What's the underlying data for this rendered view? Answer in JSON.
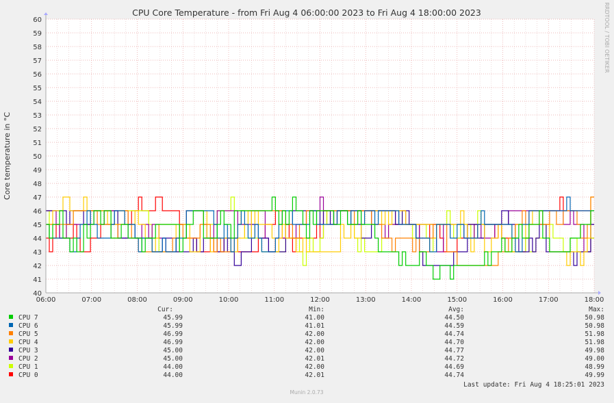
{
  "chart_data": {
    "type": "line",
    "title": "CPU Core Temperature - from Fri Aug  4 06:00:00 2023 to Fri Aug  4 18:00:00 2023",
    "ylabel": "Core temperature in °C",
    "xlabel": "",
    "ylim": [
      40,
      60
    ],
    "yticks": [
      40,
      41,
      42,
      43,
      44,
      45,
      46,
      47,
      48,
      49,
      50,
      51,
      52,
      53,
      54,
      55,
      56,
      57,
      58,
      59,
      60
    ],
    "xlim": [
      "06:00",
      "18:00"
    ],
    "xticks": [
      "06:00",
      "07:00",
      "08:00",
      "09:00",
      "10:00",
      "11:00",
      "12:00",
      "13:00",
      "14:00",
      "15:00",
      "16:00",
      "17:00",
      "18:00"
    ],
    "grid": true,
    "side_label": "RRDTOOL / TOBI OETIKER",
    "legend_headers": {
      "cur": "Cur:",
      "min": "Min:",
      "avg": "Avg:",
      "max": "Max:"
    },
    "series": [
      {
        "name": "CPU 7",
        "color": "#00cc00",
        "cur": "45.99",
        "min": "41.00",
        "avg": "44.50",
        "max": "50.98"
      },
      {
        "name": "CPU 6",
        "color": "#0066b3",
        "cur": "45.99",
        "min": "41.01",
        "avg": "44.59",
        "max": "50.98"
      },
      {
        "name": "CPU 5",
        "color": "#ff8000",
        "cur": "46.99",
        "min": "42.00",
        "avg": "44.74",
        "max": "51.98"
      },
      {
        "name": "CPU 4",
        "color": "#ffcc00",
        "cur": "46.99",
        "min": "42.00",
        "avg": "44.70",
        "max": "51.98"
      },
      {
        "name": "CPU 3",
        "color": "#330099",
        "cur": "45.00",
        "min": "42.00",
        "avg": "44.77",
        "max": "49.98"
      },
      {
        "name": "CPU 2",
        "color": "#990099",
        "cur": "45.00",
        "min": "42.01",
        "avg": "44.72",
        "max": "49.00"
      },
      {
        "name": "CPU 1",
        "color": "#ccff00",
        "cur": "44.00",
        "min": "42.00",
        "avg": "44.69",
        "max": "48.99"
      },
      {
        "name": "CPU 0",
        "color": "#ff0000",
        "cur": "44.00",
        "min": "42.01",
        "avg": "44.74",
        "max": "49.99"
      }
    ],
    "last_update": "Last update:  Fri Aug  4 18:25:01 2023",
    "footer": "Munin 2.0.73"
  }
}
